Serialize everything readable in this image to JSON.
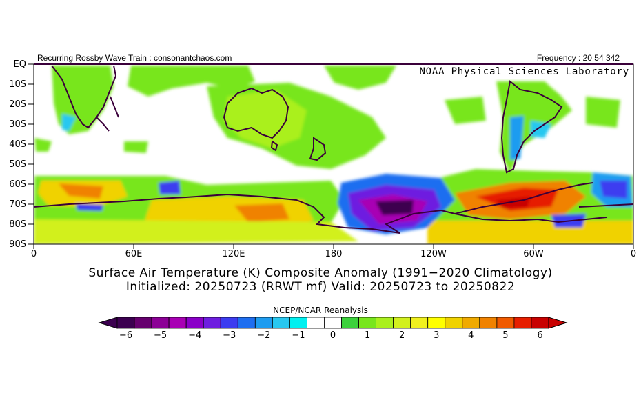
{
  "header": {
    "left": "Recurring Rossby Wave Train : consonantchaos.com",
    "right": "Frequency : 20 54 342"
  },
  "credit": "NOAA Physical Sciences Laboratory",
  "lat_labels": [
    "EQ",
    "10S",
    "20S",
    "30S",
    "40S",
    "50S",
    "60S",
    "70S",
    "80S",
    "90S"
  ],
  "lon_labels": [
    "0",
    "60E",
    "120E",
    "180",
    "120W",
    "60W",
    "0"
  ],
  "title_line1": "Surface Air Temperature (K) Composite Anomaly (1991−2020 Climatology)",
  "title_line2": "Initialized: 20250723 (RRWT mf) Valid: 20250723 to 20250822",
  "colorbar": {
    "title": "NCEP/NCAR Reanalysis",
    "labels": [
      "−6",
      "−5",
      "−4",
      "−3",
      "−2",
      "−1",
      "0",
      "1",
      "2",
      "3",
      "4",
      "5",
      "6"
    ],
    "colors": [
      "#3c0050",
      "#66006e",
      "#8c0096",
      "#a800b4",
      "#8a00c8",
      "#6e1ee0",
      "#3c3cf0",
      "#1e6ef0",
      "#1e9cf0",
      "#28c8f0",
      "#00f0f0",
      "#ffffff",
      "#ffffff",
      "#3cd23c",
      "#78e61e",
      "#aaf01e",
      "#d2f01e",
      "#f0f01e",
      "#ffff00",
      "#f0d200",
      "#f0aa00",
      "#f08200",
      "#f05a00",
      "#e61e00",
      "#c80000"
    ]
  }
}
